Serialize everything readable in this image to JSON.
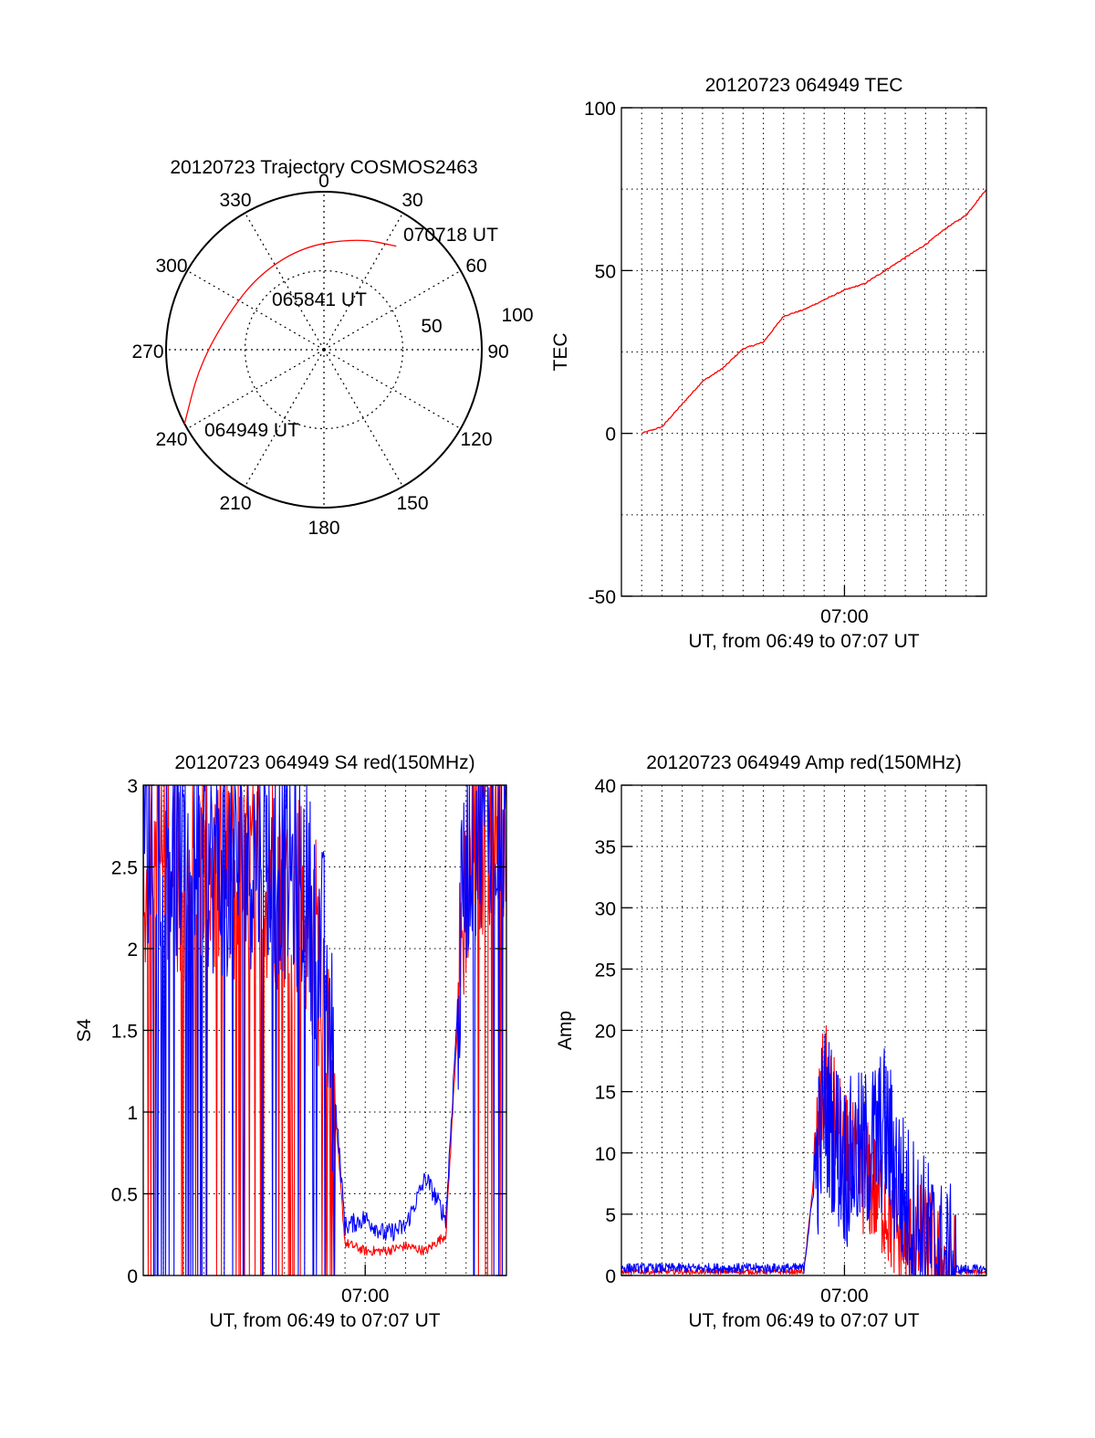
{
  "chart_data": [
    {
      "type": "polar",
      "title": "20120723 Trajectory COSMOS2463",
      "azimuth_labels": [
        "0",
        "30",
        "60",
        "90",
        "120",
        "150",
        "180",
        "210",
        "240",
        "270",
        "300",
        "330"
      ],
      "radial_labels": [
        "50",
        "100"
      ],
      "radial_range": [
        0,
        100
      ],
      "trajectory": {
        "color": "#ff0000",
        "points": [
          [
            242,
            100
          ],
          [
            262,
            80
          ],
          [
            290,
            65
          ],
          [
            320,
            63
          ],
          [
            350,
            67
          ],
          [
            18,
            74
          ],
          [
            35,
            80
          ]
        ]
      },
      "annotations": [
        {
          "text": "070718 UT",
          "az": 35,
          "r": 80
        },
        {
          "text": "065841 UT",
          "az": 0,
          "r": 40
        },
        {
          "text": "064949 UT",
          "az": 242,
          "r": 100
        }
      ]
    },
    {
      "type": "line",
      "title": "20120723 064949 TEC",
      "ylabel": "TEC",
      "xlabel": "UT, from 06:49 to 07:07 UT",
      "xlim": [
        "06:49",
        "07:07"
      ],
      "ylim": [
        -50,
        100
      ],
      "yticks": [
        "-50",
        "0",
        "50",
        "100"
      ],
      "xticks": [
        "07:00"
      ],
      "grid": true,
      "series": [
        {
          "color": "#ff0000",
          "x": [
            "06:50",
            "06:51",
            "06:52",
            "06:53",
            "06:54",
            "06:55",
            "06:56",
            "06:57",
            "06:58",
            "06:59",
            "07:00",
            "07:01",
            "07:02",
            "07:03",
            "07:04",
            "07:05",
            "07:06",
            "07:07"
          ],
          "values": [
            0,
            2,
            9,
            16,
            20,
            26,
            28,
            36,
            38,
            41,
            44,
            46,
            50,
            54,
            58,
            63,
            67,
            75
          ]
        }
      ]
    },
    {
      "type": "line",
      "title": "20120723 064949 S4 red(150MHz)",
      "ylabel": "S4",
      "xlabel": "UT, from 06:49 to 07:07 UT",
      "xlim": [
        "06:49",
        "07:07"
      ],
      "ylim": [
        0,
        3
      ],
      "yticks": [
        "0",
        "0.5",
        "1",
        "1.5",
        "2",
        "2.5",
        "3"
      ],
      "xticks": [
        "07:00"
      ],
      "grid": true,
      "series": [
        {
          "color": "#ff0000",
          "x": [
            "06:49",
            "06:51",
            "06:53",
            "06:55",
            "06:57",
            "06:58",
            "06:59",
            "07:00",
            "07:01",
            "07:02",
            "07:03",
            "07:04",
            "07:05",
            "07:06",
            "07:07"
          ],
          "values": [
            2.6,
            2.5,
            2.4,
            2.5,
            2.3,
            1.8,
            0.2,
            0.15,
            0.15,
            0.18,
            0.15,
            0.25,
            2.5,
            2.8,
            2.9
          ]
        },
        {
          "color": "#0000ff",
          "x": [
            "06:49",
            "06:51",
            "06:53",
            "06:55",
            "06:57",
            "06:58",
            "06:59",
            "07:00",
            "07:01",
            "07:02",
            "07:03",
            "07:04",
            "07:05",
            "07:06",
            "07:07"
          ],
          "values": [
            2.7,
            2.6,
            2.5,
            2.6,
            2.4,
            1.9,
            0.3,
            0.35,
            0.25,
            0.3,
            0.6,
            0.35,
            2.6,
            2.9,
            2.9
          ]
        }
      ]
    },
    {
      "type": "line",
      "title": "20120723 064949 Amp red(150MHz)",
      "ylabel": "Amp",
      "xlabel": "UT, from 06:49 to 07:07 UT",
      "xlim": [
        "06:49",
        "07:07"
      ],
      "ylim": [
        0,
        40
      ],
      "yticks": [
        "0",
        "5",
        "10",
        "15",
        "20",
        "25",
        "30",
        "35",
        "40"
      ],
      "xticks": [
        "07:00"
      ],
      "grid": true,
      "series": [
        {
          "color": "#ff0000",
          "x": [
            "06:49",
            "06:55",
            "06:58",
            "06:59",
            "07:00",
            "07:01",
            "07:02",
            "07:03",
            "07:04",
            "07:05",
            "07:07"
          ],
          "values": [
            0.3,
            0.3,
            0.3,
            16,
            10,
            8,
            6,
            2,
            3,
            0.3,
            0.3
          ]
        },
        {
          "color": "#0000ff",
          "x": [
            "06:49",
            "06:55",
            "06:58",
            "06:59",
            "07:00",
            "07:01",
            "07:02",
            "07:03",
            "07:04",
            "07:05",
            "07:07"
          ],
          "values": [
            0.6,
            0.6,
            0.6,
            14,
            9,
            10,
            12,
            6,
            3,
            0.5,
            0.5
          ]
        }
      ]
    }
  ]
}
